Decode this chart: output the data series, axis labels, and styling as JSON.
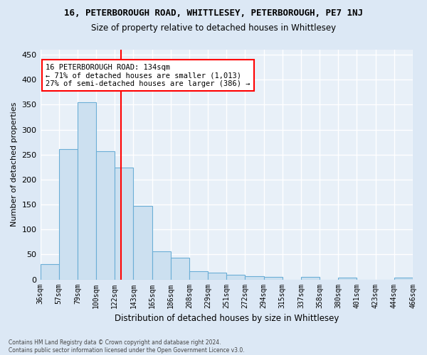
{
  "title1": "16, PETERBOROUGH ROAD, WHITTLESEY, PETERBOROUGH, PE7 1NJ",
  "title2": "Size of property relative to detached houses in Whittlesey",
  "xlabel": "Distribution of detached houses by size in Whittlesey",
  "ylabel": "Number of detached properties",
  "footnote": "Contains HM Land Registry data © Crown copyright and database right 2024.\nContains public sector information licensed under the Open Government Licence v3.0.",
  "bin_labels": [
    "36sqm",
    "57sqm",
    "79sqm",
    "100sqm",
    "122sqm",
    "143sqm",
    "165sqm",
    "186sqm",
    "208sqm",
    "229sqm",
    "251sqm",
    "272sqm",
    "294sqm",
    "315sqm",
    "337sqm",
    "358sqm",
    "380sqm",
    "401sqm",
    "423sqm",
    "444sqm",
    "466sqm"
  ],
  "bar_heights": [
    30,
    261,
    355,
    257,
    224,
    147,
    56,
    43,
    17,
    13,
    9,
    7,
    5,
    0,
    5,
    0,
    3,
    0,
    0,
    3
  ],
  "bar_color": "#cce0f0",
  "bar_edge_color": "#6baed6",
  "annotation_text": "16 PETERBOROUGH ROAD: 134sqm\n← 71% of detached houses are smaller (1,013)\n27% of semi-detached houses are larger (386) →",
  "annotation_box_color": "white",
  "annotation_box_edge_color": "red",
  "vline_color": "red",
  "ylim": [
    0,
    460
  ],
  "yticks": [
    0,
    50,
    100,
    150,
    200,
    250,
    300,
    350,
    400,
    450
  ],
  "background_color": "#dce8f5",
  "plot_background_color": "#e8f0f8",
  "grid_color": "white",
  "vline_x": 4.35
}
